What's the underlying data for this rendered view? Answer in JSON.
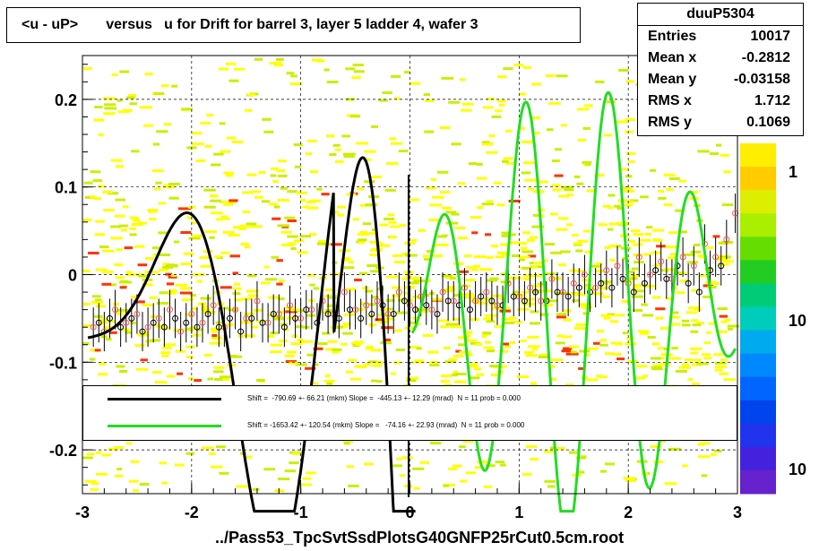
{
  "chart_data": {
    "type": "scatter",
    "title": "<u - uP>       versus   u for Drift for barrel 3, layer 5 ladder 4, wafer 3",
    "xlabel": "../Pass53_TpcSvtSsdPlotsG40GNFP25rCut0.5cm.root",
    "xlim": [
      -3,
      3
    ],
    "ylim": [
      -0.25,
      0.25
    ],
    "x_ticks": [
      "-3",
      "-2",
      "-1",
      "0",
      "1",
      "2",
      "3"
    ],
    "y_ticks": [
      "-0.2",
      "-0.1",
      "0",
      "0.1",
      "0.2"
    ],
    "colorbar_ticks": [
      "1",
      "10",
      "10"
    ],
    "grid": true,
    "series": [
      {
        "name": "profile black",
        "color": "#000000",
        "x": [
          -2.85,
          -2.75,
          -2.65,
          -2.55,
          -2.45,
          -2.35,
          -2.25,
          -2.15,
          -2.05,
          -1.95,
          -1.85,
          -1.75,
          -1.65,
          -1.55,
          -1.45,
          -1.35,
          -1.25,
          -1.15,
          -1.05,
          -0.95,
          -0.85,
          -0.75,
          -0.65,
          -0.55,
          -0.45,
          -0.35,
          -0.25,
          -0.15,
          -0.05,
          0.05,
          0.15,
          0.25,
          0.35,
          0.45,
          0.55,
          0.65,
          0.75,
          0.85,
          0.95,
          1.05,
          1.15,
          1.25,
          1.35,
          1.45,
          1.55,
          1.65,
          1.75,
          1.85,
          1.95,
          2.05,
          2.15,
          2.25,
          2.35,
          2.45,
          2.55,
          2.65,
          2.75,
          2.85
        ],
        "y": [
          -0.055,
          -0.05,
          -0.06,
          -0.05,
          -0.065,
          -0.055,
          -0.06,
          -0.05,
          -0.055,
          -0.06,
          -0.045,
          -0.06,
          -0.05,
          -0.065,
          -0.05,
          -0.055,
          -0.045,
          -0.06,
          -0.05,
          -0.04,
          -0.055,
          -0.045,
          -0.05,
          -0.04,
          -0.05,
          -0.045,
          -0.035,
          -0.045,
          -0.03,
          -0.04,
          -0.035,
          -0.045,
          -0.03,
          -0.035,
          -0.04,
          -0.025,
          -0.03,
          -0.035,
          -0.025,
          -0.03,
          -0.02,
          -0.03,
          -0.02,
          -0.025,
          -0.015,
          -0.02,
          -0.01,
          -0.015,
          -0.005,
          -0.02,
          -0.01,
          0.005,
          -0.005,
          0.01,
          -0.01,
          -0.02,
          0.005,
          0.01
        ]
      },
      {
        "name": "profile red",
        "color": "#ff0000",
        "x": [
          -2.9,
          -2.8,
          -2.7,
          -2.6,
          -2.5,
          -2.4,
          -2.3,
          -2.2,
          -2.1,
          -2.0,
          -1.9,
          -1.8,
          -1.7,
          -1.6,
          -1.5,
          -1.4,
          -1.3,
          -1.2,
          -1.1,
          -1.0,
          -0.9,
          -0.8,
          -0.7,
          -0.6,
          -0.5,
          -0.4,
          -0.3,
          -0.2,
          -0.1,
          0.0,
          0.1,
          0.2,
          0.3,
          0.4,
          0.5,
          0.6,
          0.7,
          0.8,
          0.9,
          1.0,
          1.1,
          1.2,
          1.3,
          1.4,
          1.5,
          1.6,
          1.7,
          1.8,
          1.9,
          2.0,
          2.1,
          2.2,
          2.3,
          2.4,
          2.5,
          2.6,
          2.7,
          2.8,
          2.9,
          2.98
        ],
        "y": [
          -0.06,
          -0.065,
          -0.04,
          -0.055,
          -0.045,
          -0.06,
          -0.05,
          -0.04,
          -0.065,
          -0.045,
          -0.055,
          -0.035,
          -0.06,
          -0.04,
          -0.05,
          -0.03,
          -0.055,
          -0.045,
          -0.035,
          -0.05,
          -0.04,
          -0.03,
          -0.045,
          -0.02,
          -0.04,
          -0.035,
          -0.03,
          -0.045,
          -0.02,
          -0.035,
          -0.025,
          -0.04,
          -0.02,
          -0.03,
          -0.015,
          -0.03,
          -0.02,
          -0.035,
          -0.01,
          -0.025,
          -0.015,
          -0.03,
          -0.005,
          -0.02,
          -0.01,
          0.0,
          -0.015,
          0.005,
          0.01,
          -0.01,
          0.02,
          0.0,
          0.015,
          -0.005,
          0.02,
          0.01,
          0.035,
          0.02,
          0.04,
          0.07
        ]
      },
      {
        "name": "fit black",
        "color": "#000000",
        "expression": "polynomial (approx)"
      },
      {
        "name": "fit green",
        "color": "#22dd22",
        "expression": "oscillating fit (approx)"
      }
    ],
    "stats": {
      "name": "duuP5304",
      "rows": [
        {
          "k": "Entries",
          "v": "10017"
        },
        {
          "k": "Mean x",
          "v": "-0.2812"
        },
        {
          "k": "Mean y",
          "v": "-0.03158"
        },
        {
          "k": "RMS x",
          "v": "1.712"
        },
        {
          "k": "RMS y",
          "v": "0.1069"
        }
      ]
    },
    "legend": [
      {
        "color": "#000000",
        "text": "Shift =  -790.69 +- 66.21 (mkm) Slope =  -445.13 +- 12.29 (mrad)  N = 11 prob = 0.000"
      },
      {
        "color": "#22dd22",
        "text": "Shift = -1653.42 +- 120.54 (mkm) Slope =   -74.16 +- 22.93 (mrad)  N = 11 prob = 0.000"
      }
    ],
    "colors": {
      "heat_low": "#ffff00",
      "heat_mid": "#ccee00",
      "heat_high": "#ff3300",
      "fit_black": "#000000",
      "fit_green": "#22dd22"
    }
  }
}
